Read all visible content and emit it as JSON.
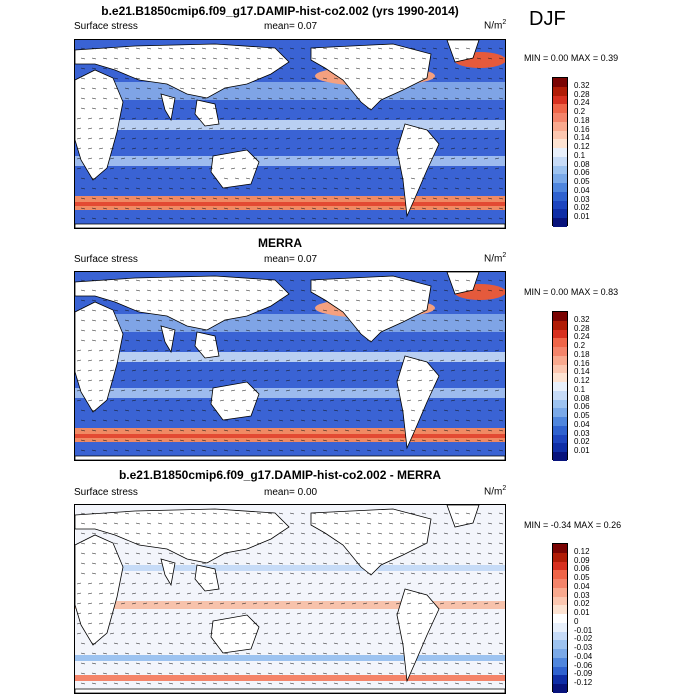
{
  "season": "DJF",
  "panels": [
    {
      "title": "b.e21.B1850cmip6.f09_g17.DAMIP-hist-co2.002 (yrs 1990-2014)",
      "left_label": "Surface stress",
      "mean_label": "mean=",
      "mean_value": "0.07",
      "units": "N/m",
      "units_sup": "2",
      "min_label": "MIN =",
      "min_value": "0.00",
      "max_label": "MAX =",
      "max_value": "0.39",
      "colorbar_ticks": [
        "0.32",
        "0.28",
        "0.24",
        "0.2",
        "0.18",
        "0.16",
        "0.14",
        "0.12",
        "0.1",
        "0.08",
        "0.06",
        "0.05",
        "0.04",
        "0.03",
        "0.02",
        "0.01"
      ],
      "colorbar_colors": [
        "#7a0403",
        "#b01c06",
        "#d7301f",
        "#ef6548",
        "#f4846a",
        "#f9a98e",
        "#fcc7b0",
        "#fde3d2",
        "#e8f0fb",
        "#c6dbf7",
        "#9dc3f0",
        "#7aa9e8",
        "#4f86dd",
        "#2f62cf",
        "#1d45bf",
        "#0f2ea6",
        "#08137c"
      ]
    },
    {
      "title": "MERRA",
      "left_label": "Surface stress",
      "mean_label": "mean=",
      "mean_value": "0.07",
      "units": "N/m",
      "units_sup": "2",
      "min_label": "MIN =",
      "min_value": "0.00",
      "max_label": "MAX =",
      "max_value": "0.83",
      "colorbar_ticks": [
        "0.32",
        "0.28",
        "0.24",
        "0.2",
        "0.18",
        "0.16",
        "0.14",
        "0.12",
        "0.1",
        "0.08",
        "0.06",
        "0.05",
        "0.04",
        "0.03",
        "0.02",
        "0.01"
      ],
      "colorbar_colors": [
        "#7a0403",
        "#b01c06",
        "#d7301f",
        "#ef6548",
        "#f4846a",
        "#f9a98e",
        "#fcc7b0",
        "#fde3d2",
        "#e8f0fb",
        "#c6dbf7",
        "#9dc3f0",
        "#7aa9e8",
        "#4f86dd",
        "#2f62cf",
        "#1d45bf",
        "#0f2ea6",
        "#08137c"
      ]
    },
    {
      "title": "b.e21.B1850cmip6.f09_g17.DAMIP-hist-co2.002 - MERRA",
      "left_label": "Surface stress",
      "mean_label": "mean=",
      "mean_value": "0.00",
      "units": "N/m",
      "units_sup": "2",
      "min_label": "MIN =",
      "min_value": "-0.34",
      "max_label": "MAX =",
      "max_value": "0.26",
      "colorbar_ticks": [
        "0.12",
        "0.09",
        "0.06",
        "0.05",
        "0.04",
        "0.03",
        "0.02",
        "0.01",
        "0",
        "-0.01",
        "-0.02",
        "-0.03",
        "-0.04",
        "-0.06",
        "-0.09",
        "-0.12"
      ],
      "colorbar_colors": [
        "#7a0403",
        "#b01c06",
        "#d7301f",
        "#ef6548",
        "#f4846a",
        "#f9a98e",
        "#fcc7b0",
        "#fde3d2",
        "#ffffff",
        "#e8f0fb",
        "#c6dbf7",
        "#9dc3f0",
        "#7aa9e8",
        "#4f86dd",
        "#2f62cf",
        "#0f2ea6",
        "#08137c"
      ]
    }
  ]
}
